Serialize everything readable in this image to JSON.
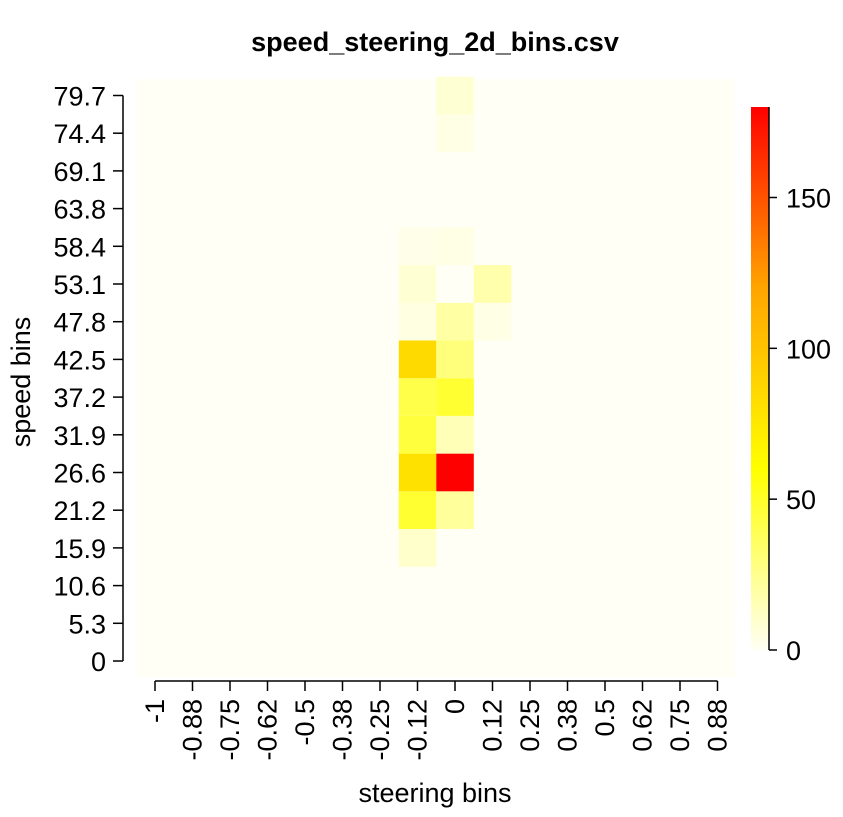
{
  "chart_data": {
    "type": "heatmap",
    "title": "speed_steering_2d_bins.csv",
    "xlabel": "steering bins",
    "ylabel": "speed bins",
    "x_ticks": [
      "-1",
      "-0.88",
      "-0.75",
      "-0.62",
      "-0.5",
      "-0.38",
      "-0.25",
      "-0.12",
      "0",
      "0.12",
      "0.25",
      "0.38",
      "0.5",
      "0.62",
      "0.75",
      "0.88"
    ],
    "y_ticks": [
      "0",
      "5.3",
      "10.6",
      "15.9",
      "21.2",
      "26.6",
      "31.9",
      "37.2",
      "42.5",
      "47.8",
      "53.1",
      "58.4",
      "63.8",
      "69.1",
      "74.4",
      "79.7"
    ],
    "colorbar": {
      "min": 0,
      "max": 180,
      "ticks": [
        0,
        50,
        100,
        150
      ],
      "colors": [
        "#fffff5",
        "#ffff00",
        "#ffa500",
        "#ff0000"
      ]
    },
    "cells": [
      {
        "x": "-0.12",
        "y": "15.9",
        "value": 10
      },
      {
        "x": "-0.12",
        "y": "21.2",
        "value": 48
      },
      {
        "x": "0",
        "y": "21.2",
        "value": 22
      },
      {
        "x": "-0.12",
        "y": "26.6",
        "value": 80
      },
      {
        "x": "0",
        "y": "26.6",
        "value": 180
      },
      {
        "x": "-0.12",
        "y": "31.9",
        "value": 45
      },
      {
        "x": "0",
        "y": "31.9",
        "value": 15
      },
      {
        "x": "-0.12",
        "y": "37.2",
        "value": 42
      },
      {
        "x": "0",
        "y": "37.2",
        "value": 48
      },
      {
        "x": "-0.12",
        "y": "42.5",
        "value": 85
      },
      {
        "x": "0",
        "y": "42.5",
        "value": 30
      },
      {
        "x": "-0.12",
        "y": "47.8",
        "value": 5
      },
      {
        "x": "0",
        "y": "47.8",
        "value": 20
      },
      {
        "x": "0.12",
        "y": "47.8",
        "value": 4
      },
      {
        "x": "-0.12",
        "y": "53.1",
        "value": 8
      },
      {
        "x": "0",
        "y": "53.1",
        "value": 0
      },
      {
        "x": "0.12",
        "y": "53.1",
        "value": 18
      },
      {
        "x": "-0.12",
        "y": "58.4",
        "value": 3
      },
      {
        "x": "0",
        "y": "58.4",
        "value": 4
      },
      {
        "x": "0",
        "y": "74.4",
        "value": 4
      },
      {
        "x": "0",
        "y": "79.7",
        "value": 8
      }
    ]
  }
}
